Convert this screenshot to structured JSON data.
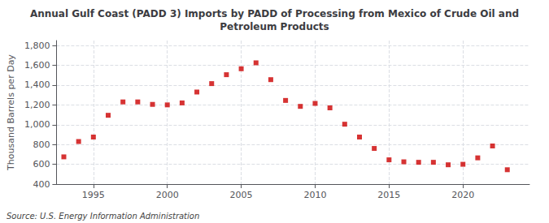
{
  "chart_data": {
    "type": "scatter",
    "title": "Annual Gulf Coast (PADD 3) Imports by PADD of Processing from Mexico of Crude Oil and\nPetroleum Products",
    "ylabel": "Thousand Barrels per Day",
    "source": "Source: U.S. Energy Information Administration",
    "x": [
      1993,
      1994,
      1995,
      1996,
      1997,
      1998,
      1999,
      2000,
      2001,
      2002,
      2003,
      2004,
      2005,
      2006,
      2007,
      2008,
      2009,
      2010,
      2011,
      2012,
      2013,
      2014,
      2015,
      2016,
      2017,
      2018,
      2019,
      2020,
      2021,
      2022,
      2023
    ],
    "values": [
      675,
      830,
      875,
      1095,
      1230,
      1230,
      1205,
      1200,
      1220,
      1330,
      1415,
      1505,
      1565,
      1625,
      1455,
      1245,
      1185,
      1215,
      1170,
      1005,
      875,
      760,
      645,
      625,
      620,
      620,
      595,
      600,
      665,
      785,
      545
    ],
    "color": "#cc0000",
    "marker": "square",
    "xlim": [
      1992.5,
      2024.5
    ],
    "ylim": [
      400,
      1850
    ],
    "xticks": [
      1995,
      2000,
      2005,
      2010,
      2015,
      2020
    ],
    "yticks": [
      400,
      600,
      800,
      {
        "value": 1000,
        "label": "1,000"
      },
      {
        "value": 1200,
        "label": "1,200"
      },
      {
        "value": 1400,
        "label": "1,400"
      },
      {
        "value": 1600,
        "label": "1,600"
      },
      {
        "value": 1800,
        "label": "1,800"
      }
    ],
    "grid": true
  }
}
